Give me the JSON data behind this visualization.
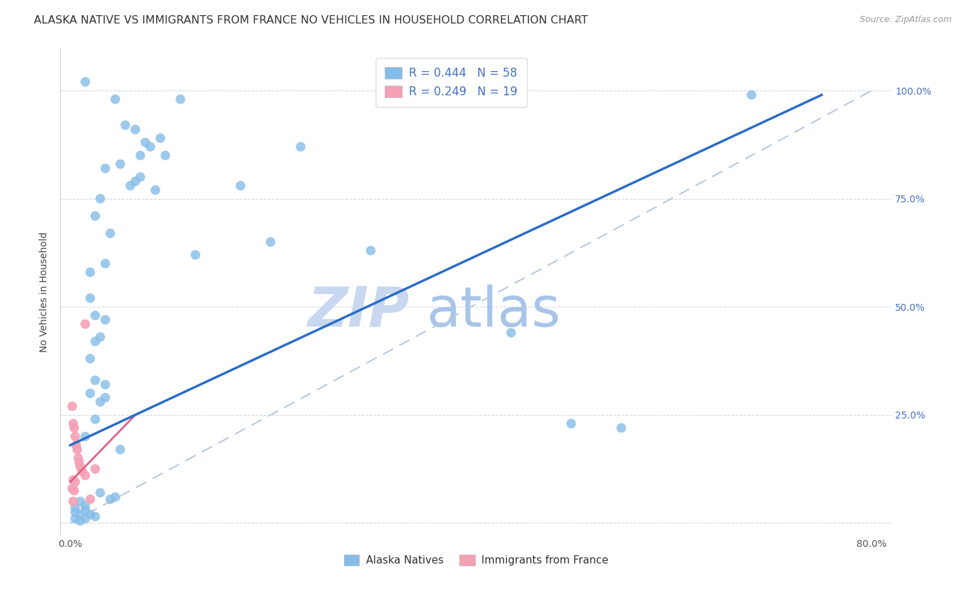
{
  "title": "ALASKA NATIVE VS IMMIGRANTS FROM FRANCE NO VEHICLES IN HOUSEHOLD CORRELATION CHART",
  "source": "Source: ZipAtlas.com",
  "ylabel": "No Vehicles in Household",
  "x_ticks": [
    0.0,
    10.0,
    20.0,
    30.0,
    40.0,
    50.0,
    60.0,
    70.0,
    80.0
  ],
  "x_tick_labels": [
    "0.0%",
    "",
    "",
    "",
    "",
    "",
    "",
    "",
    "80.0%"
  ],
  "y_ticks": [
    0.0,
    25.0,
    50.0,
    75.0,
    100.0
  ],
  "y_tick_labels": [
    "",
    "25.0%",
    "50.0%",
    "75.0%",
    "100.0%"
  ],
  "xlim": [
    -1.0,
    82.0
  ],
  "ylim": [
    -3.0,
    110.0
  ],
  "blue_dots": [
    [
      1.5,
      102.0
    ],
    [
      4.5,
      98.0
    ],
    [
      11.0,
      98.0
    ],
    [
      5.5,
      92.0
    ],
    [
      6.5,
      91.0
    ],
    [
      7.5,
      88.0
    ],
    [
      8.0,
      87.0
    ],
    [
      9.0,
      89.0
    ],
    [
      7.0,
      85.0
    ],
    [
      9.5,
      85.0
    ],
    [
      3.5,
      82.0
    ],
    [
      5.0,
      83.0
    ],
    [
      6.0,
      78.0
    ],
    [
      6.5,
      79.0
    ],
    [
      7.0,
      80.0
    ],
    [
      8.5,
      77.0
    ],
    [
      3.0,
      75.0
    ],
    [
      2.5,
      71.0
    ],
    [
      4.0,
      67.0
    ],
    [
      3.5,
      60.0
    ],
    [
      2.0,
      58.0
    ],
    [
      2.0,
      52.0
    ],
    [
      2.5,
      48.0
    ],
    [
      3.5,
      47.0
    ],
    [
      2.5,
      42.0
    ],
    [
      3.0,
      43.0
    ],
    [
      2.0,
      38.0
    ],
    [
      2.5,
      33.0
    ],
    [
      3.5,
      32.0
    ],
    [
      2.0,
      30.0
    ],
    [
      3.0,
      28.0
    ],
    [
      3.5,
      29.0
    ],
    [
      2.5,
      24.0
    ],
    [
      1.5,
      20.0
    ],
    [
      5.0,
      17.0
    ],
    [
      1.0,
      5.0
    ],
    [
      1.5,
      4.0
    ],
    [
      1.5,
      3.0
    ],
    [
      2.0,
      2.0
    ],
    [
      2.5,
      1.5
    ],
    [
      3.0,
      7.0
    ],
    [
      4.0,
      5.5
    ],
    [
      4.5,
      6.0
    ],
    [
      23.0,
      87.0
    ],
    [
      17.0,
      78.0
    ],
    [
      20.0,
      65.0
    ],
    [
      12.5,
      62.0
    ],
    [
      30.0,
      63.0
    ],
    [
      44.0,
      44.0
    ],
    [
      50.0,
      23.0
    ],
    [
      55.0,
      22.0
    ],
    [
      68.0,
      99.0
    ],
    [
      0.5,
      1.0
    ],
    [
      1.0,
      2.0
    ],
    [
      0.5,
      3.5
    ],
    [
      0.5,
      2.5
    ],
    [
      1.0,
      0.5
    ],
    [
      1.5,
      1.0
    ]
  ],
  "pink_dots": [
    [
      0.2,
      27.0
    ],
    [
      0.3,
      23.0
    ],
    [
      0.4,
      22.0
    ],
    [
      0.5,
      20.0
    ],
    [
      0.6,
      18.0
    ],
    [
      0.7,
      17.0
    ],
    [
      0.8,
      15.0
    ],
    [
      0.9,
      14.0
    ],
    [
      1.0,
      13.0
    ],
    [
      1.2,
      12.0
    ],
    [
      1.5,
      11.0
    ],
    [
      0.3,
      10.0
    ],
    [
      0.5,
      9.5
    ],
    [
      0.2,
      8.0
    ],
    [
      0.4,
      7.5
    ],
    [
      1.5,
      46.0
    ],
    [
      2.5,
      12.5
    ],
    [
      2.0,
      5.5
    ],
    [
      0.3,
      5.0
    ]
  ],
  "blue_line_x": [
    0.0,
    75.0
  ],
  "blue_line_y": [
    18.0,
    99.0
  ],
  "pink_line_x": [
    0.0,
    6.5
  ],
  "pink_line_y": [
    9.5,
    25.0
  ],
  "ref_line_x": [
    0.0,
    80.0
  ],
  "ref_line_y": [
    0.0,
    100.0
  ],
  "dot_size": 100,
  "blue_dot_color": "#85bce8",
  "pink_dot_color": "#f4a0b5",
  "blue_line_color": "#2a6cc8",
  "pink_line_color": "#e06080",
  "ref_line_color": "#b8c8dc",
  "background_color": "#ffffff",
  "grid_color": "#d0d8e8",
  "title_fontsize": 11.5,
  "source_fontsize": 9,
  "axis_label_fontsize": 10,
  "tick_fontsize": 10,
  "watermark_zip_color": "#c8d8f0",
  "watermark_atlas_color": "#a8c4e8",
  "watermark_fontsize_zip": 58,
  "watermark_fontsize_atlas": 58
}
